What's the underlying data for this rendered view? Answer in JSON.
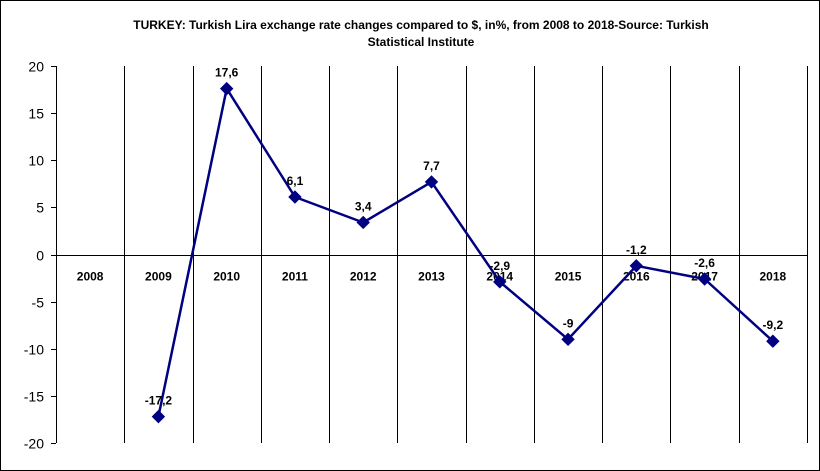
{
  "chart_data": {
    "type": "line",
    "title_lines": [
      "TURKEY: Turkish Lira exchange rate changes compared to $, in%, from 2008 to 2018-Source: Turkish",
      "Statistical Institute"
    ],
    "categories": [
      "2008",
      "2009",
      "2010",
      "2011",
      "2012",
      "2013",
      "2014",
      "2015",
      "2016",
      "2017",
      "2018"
    ],
    "series": [
      {
        "x": [
          "2009",
          "2010",
          "2011",
          "2012",
          "2013",
          "2014",
          "2015",
          "2016",
          "2017",
          "2018"
        ],
        "values": [
          -17.2,
          17.6,
          6.1,
          3.4,
          7.7,
          -2.9,
          -9,
          -1.2,
          -2.6,
          -9.2
        ],
        "data_labels": [
          "-17,2",
          "17,6",
          "6,1",
          "3,4",
          "7,7",
          "-2,9",
          "-9",
          "-1,2",
          "-2,6",
          "-9,2"
        ],
        "color": "#000080"
      }
    ],
    "ylim": [
      -20,
      20
    ],
    "yticks": [
      20,
      15,
      10,
      5,
      0,
      -5,
      -10,
      -15,
      -20
    ],
    "ytick_labels": [
      "20",
      "15",
      "10",
      "5",
      "0",
      "-5",
      "-10",
      "-15",
      "-20"
    ],
    "grid": "vertical",
    "legend": "none",
    "xlabel": "",
    "ylabel": "",
    "line_color": "#000080",
    "axis_color": "#000000"
  }
}
